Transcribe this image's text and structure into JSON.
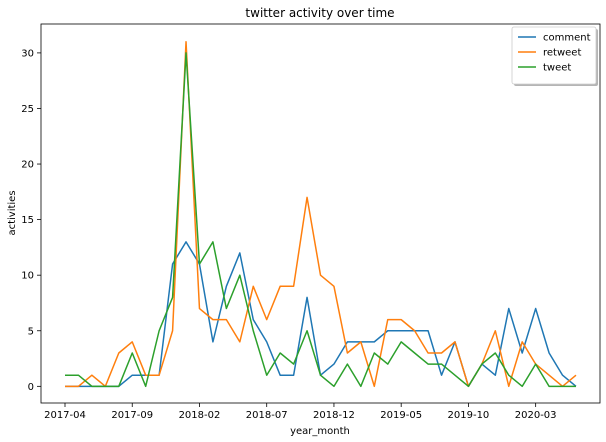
{
  "chart_data": {
    "type": "line",
    "title": "twitter activity over time",
    "xlabel": "year_month",
    "ylabel": "activities",
    "x": [
      "2017-04",
      "2017-05",
      "2017-06",
      "2017-07",
      "2017-08",
      "2017-09",
      "2017-10",
      "2017-11",
      "2017-12",
      "2018-01",
      "2018-02",
      "2018-03",
      "2018-04",
      "2018-05",
      "2018-06",
      "2018-07",
      "2018-08",
      "2018-09",
      "2018-10",
      "2018-11",
      "2018-12",
      "2019-01",
      "2019-02",
      "2019-03",
      "2019-04",
      "2019-05",
      "2019-06",
      "2019-07",
      "2019-08",
      "2019-09",
      "2019-10",
      "2019-11",
      "2019-12",
      "2020-01",
      "2020-02",
      "2020-03",
      "2020-04",
      "2020-05",
      "2020-06"
    ],
    "x_ticks": [
      "2017-04",
      "2017-09",
      "2018-02",
      "2018-07",
      "2018-12",
      "2019-05",
      "2019-10",
      "2020-03"
    ],
    "ylim": [
      -1.5,
      32.6
    ],
    "y_ticks": [
      0,
      5,
      10,
      15,
      20,
      25,
      30
    ],
    "grid": false,
    "legend_position": "top-right",
    "series": [
      {
        "name": "comment",
        "color": "#1f77b4",
        "values": [
          0,
          0,
          0,
          0,
          0,
          1,
          1,
          1,
          11,
          13,
          11,
          4,
          9,
          12,
          6,
          4,
          1,
          1,
          8,
          1,
          2,
          4,
          4,
          4,
          5,
          5,
          5,
          5,
          1,
          4,
          0,
          2,
          1,
          7,
          3,
          7,
          3,
          1,
          0
        ]
      },
      {
        "name": "retweet",
        "color": "#ff7f0e",
        "values": [
          0,
          0,
          1,
          0,
          3,
          4,
          1,
          1,
          5,
          31,
          7,
          6,
          6,
          4,
          9,
          6,
          9,
          9,
          17,
          10,
          9,
          3,
          4,
          0,
          6,
          6,
          5,
          3,
          3,
          4,
          0,
          2,
          5,
          0,
          4,
          2,
          1,
          0,
          1
        ]
      },
      {
        "name": "tweet",
        "color": "#2ca02c",
        "values": [
          1,
          1,
          0,
          0,
          0,
          3,
          0,
          5,
          8,
          30,
          11,
          13,
          7,
          10,
          5,
          1,
          3,
          2,
          5,
          1,
          0,
          2,
          0,
          3,
          2,
          4,
          3,
          2,
          2,
          1,
          0,
          2,
          3,
          1,
          0,
          2,
          0,
          0,
          0
        ]
      }
    ]
  }
}
